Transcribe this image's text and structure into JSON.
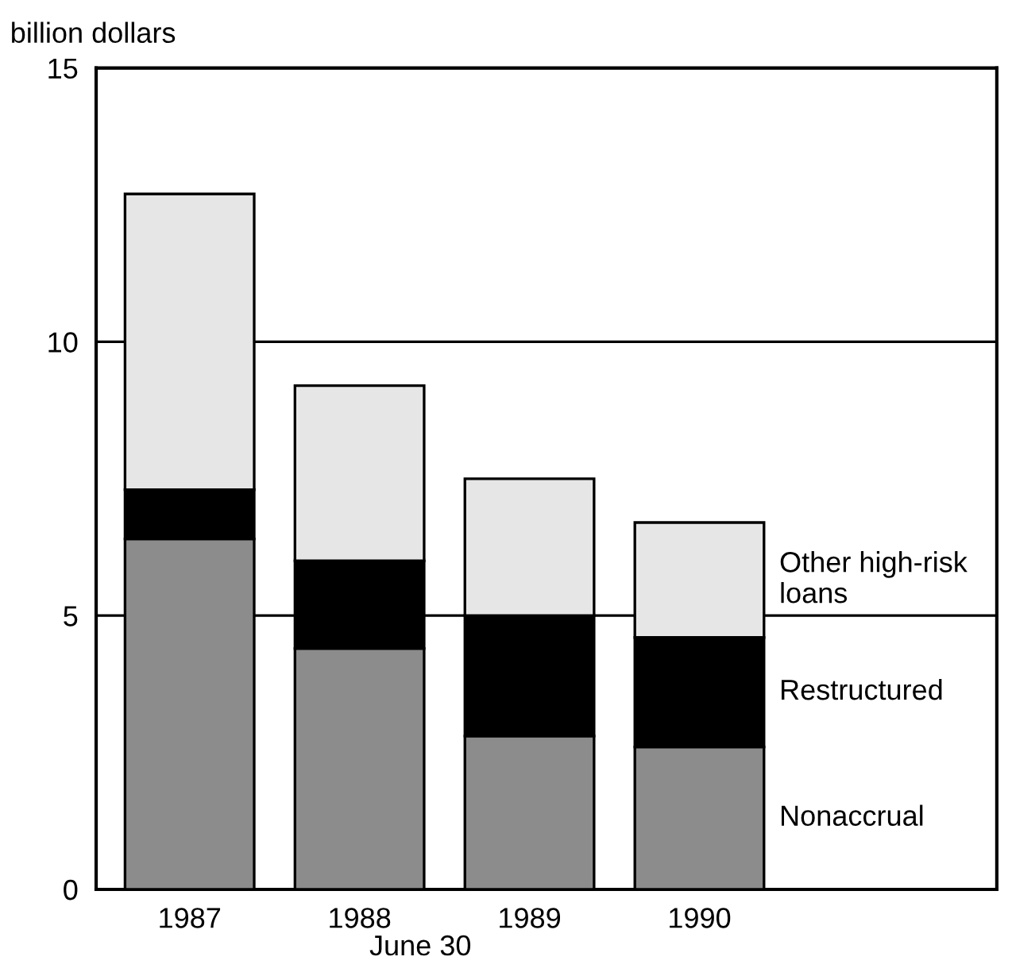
{
  "chart_data": {
    "type": "bar",
    "stacked": true,
    "ylabel": "billion dollars",
    "xlabel": "June 30",
    "categories": [
      "1987",
      "1988",
      "1989",
      "1990"
    ],
    "series": [
      {
        "name": "Nonaccrual",
        "color": "#8c8c8c",
        "values": [
          6.4,
          4.4,
          2.8,
          2.6
        ]
      },
      {
        "name": "Restructured",
        "color": "#000000",
        "values": [
          0.9,
          1.6,
          2.2,
          2.0
        ]
      },
      {
        "name": "Other high-risk loans",
        "color": "#e6e6e6",
        "values": [
          5.4,
          3.2,
          2.5,
          2.1
        ]
      }
    ],
    "ylim": [
      0,
      15
    ],
    "yticks": [
      0,
      5,
      10,
      15
    ],
    "grid": "y",
    "legend": false
  }
}
